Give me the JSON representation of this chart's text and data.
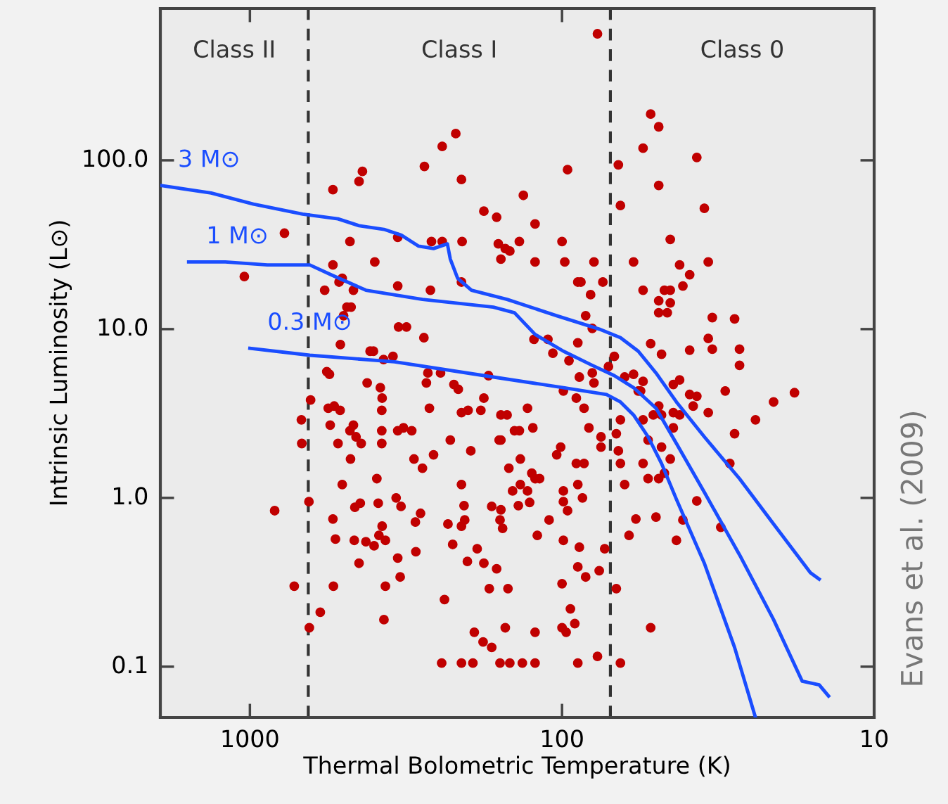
{
  "chart_data": {
    "type": "scatter",
    "xlabel": "Thermal Bolometric Temperature (K)",
    "ylabel": "Intrinsic Luminosity (L⊙)",
    "log": "xy",
    "xlim": [
      1936,
      10
    ],
    "ylim": [
      0.05,
      794
    ],
    "xticks": [
      1000,
      100,
      10
    ],
    "yticks": [
      0.1,
      {
        "value": 1,
        "label": "1.0"
      },
      {
        "value": 10,
        "label": "10.0"
      },
      {
        "value": 100,
        "label": "100.0"
      }
    ],
    "grid": false,
    "legend": false,
    "ref_lines": [
      {
        "axis": "x",
        "value": 650,
        "line_style": "dashed",
        "color": "#333333"
      },
      {
        "axis": "x",
        "value": 70,
        "line_style": "dashed",
        "color": "#333333"
      }
    ],
    "annotations": [
      "Class II",
      "Class I",
      "Class 0",
      "Evans et al. (2009)"
    ],
    "series": [
      {
        "marker": "circle",
        "color": "#c00000",
        "x": [
          77,
          52,
          49,
          55,
          37,
          49,
          35,
          66,
          65,
          96,
          133,
          178,
          162,
          122,
          210,
          219,
          242,
          276,
          436,
          447,
          542,
          478,
          398,
          336,
          262,
          242,
          209,
          160,
          137,
          152,
          122,
          147,
          100,
          98,
          87,
          79,
          74,
          89,
          81,
          84,
          80,
          89,
          111,
          123,
          107,
          95,
          99,
          88,
          80,
          79,
          90,
          85,
          82,
          75,
          75,
          85,
          89,
          86,
          99,
          99,
          96,
          110,
          99,
          88,
          73,
          76,
          84,
          89,
          100,
          94,
          91,
          100,
          97,
          67,
          89,
          77,
          65,
          122,
          134,
          147,
          158,
          193,
          210,
          243,
          122,
          152,
          168,
          179,
          191,
          171,
          149,
          162,
          178,
          201,
          224,
          187,
          155,
          158,
          157,
          168,
          206,
          210,
          232,
          205,
          210,
          238,
          372,
          368,
          330,
          336,
          294,
          284,
          295,
          340,
          328,
          388,
          392,
          377,
          386,
          368,
          400,
          463,
          425,
          461,
          443,
          506,
          542,
          532,
          447,
          540,
          721,
          645,
          595,
          833,
          647,
          684,
          682,
          639,
          567,
          556,
          561,
          537,
          514,
          553,
          466,
          478,
          457,
          522,
          440,
          476,
          378,
          378,
          336,
          322,
          378,
          377,
          382,
          421,
          412,
          402,
          373,
          348,
          334,
          315,
          277,
          336,
          269,
          272,
          266,
          303,
          298,
          280,
          258,
          264,
          245,
          222,
          215,
          228,
          210,
          200,
          196,
          182,
          178,
          172,
          159,
          157,
          150,
          157,
          142,
          137,
          136,
          129,
          124,
          122,
          125,
          118,
          129,
          127,
          136,
          148,
          144,
          138,
          120,
          104,
          101,
          90,
          71,
          68,
          63,
          59,
          55,
          57,
          56,
          55,
          53,
          65,
          67,
          66,
          65,
          63,
          61,
          58,
          55,
          53,
          50,
          49,
          47,
          45,
          48,
          49,
          51,
          48,
          44,
          44,
          42,
          44,
          39,
          38,
          37,
          34,
          39,
          42,
          48,
          52,
          49,
          47,
          45,
          55,
          46,
          49,
          45,
          45,
          42,
          39,
          41,
          59,
          34,
          33,
          28,
          34,
          33,
          27,
          27,
          30,
          28,
          29,
          24,
          21,
          18,
          31,
          41,
          37,
          43,
          52,
          1042,
          775,
          576,
          542,
          518,
          501,
          489,
          474,
          466,
          506,
          513,
          157,
          210
        ],
        "values": [
          562,
          188,
          158,
          118,
          104,
          71,
          52,
          94,
          54,
          88,
          62,
          50,
          46,
          42,
          77,
          144,
          121,
          92,
          86,
          75,
          67,
          33,
          25,
          35,
          33,
          33,
          33,
          32,
          33,
          30,
          25,
          29,
          33,
          25,
          19,
          25,
          19,
          19,
          16,
          12,
          10.1,
          8.3,
          8.7,
          8.7,
          7.2,
          6.5,
          4.3,
          5.2,
          5.5,
          4.8,
          3.9,
          3.4,
          2.6,
          2.3,
          2.0,
          1.6,
          1.2,
          1.0,
          1.1,
          0.95,
          0.84,
          0.74,
          0.56,
          0.51,
          0.5,
          0.37,
          0.34,
          0.39,
          0.31,
          0.22,
          0.18,
          0.17,
          0.16,
          0.29,
          0.105,
          0.115,
          0.105,
          0.105,
          0.105,
          0.105,
          0.105,
          0.105,
          0.105,
          0.105,
          0.16,
          0.17,
          0.13,
          0.14,
          0.16,
          0.29,
          0.29,
          0.38,
          0.41,
          0.42,
          0.53,
          0.5,
          0.66,
          0.74,
          0.85,
          0.89,
          0.9,
          1.2,
          0.7,
          0.74,
          0.68,
          0.25,
          0.19,
          0.3,
          0.34,
          0.44,
          0.48,
          0.81,
          0.72,
          1.0,
          0.89,
          0.93,
          1.3,
          0.68,
          0.6,
          0.56,
          0.52,
          0.56,
          0.55,
          0.88,
          0.93,
          1.2,
          0.75,
          0.57,
          0.41,
          0.3,
          0.3,
          0.17,
          0.21,
          0.84,
          0.95,
          2.9,
          2.1,
          3.8,
          5.6,
          5.4,
          3.4,
          3.5,
          3.3,
          2.7,
          2.7,
          2.5,
          2.3,
          2.1,
          2.1,
          1.7,
          2.1,
          2.5,
          2.5,
          2.6,
          3.3,
          3.9,
          4.5,
          4.8,
          7.4,
          7.4,
          6.6,
          6.9,
          10.3,
          10.3,
          8.9,
          18,
          5.5,
          4.8,
          3.4,
          2.5,
          1.7,
          1.5,
          1.8,
          17,
          5.5,
          4.7,
          4.4,
          2.2,
          3.2,
          3.3,
          1.9,
          3.3,
          3.9,
          5.3,
          2.2,
          3.1,
          3.1,
          2.2,
          2.5,
          2.5,
          1.7,
          3.4,
          2.6,
          1.3,
          1.4,
          1.3,
          1.1,
          0.94,
          1.2,
          1.5,
          1.1,
          0.9,
          0.6,
          1.8,
          2.0,
          1.6,
          6.0,
          6.9,
          5.2,
          5.4,
          4.9,
          4.3,
          4.3,
          2.9,
          2.2,
          2.9,
          2.4,
          1.9,
          1.6,
          1.2,
          0.6,
          0.75,
          1.6,
          1.3,
          0.77,
          1.3,
          1.4,
          1.7,
          2.0,
          3.5,
          3.1,
          3.1,
          2.6,
          3.2,
          3.1,
          4.7,
          4.1,
          3.5,
          4.0,
          3.2,
          7.5,
          5.0,
          7.1,
          8.2,
          14.7,
          17,
          17,
          17,
          12.5,
          12.5,
          14.3,
          34,
          24,
          21,
          18,
          25,
          25,
          11.7,
          11.5,
          8.8,
          7.6,
          7.6,
          6.1,
          4.3,
          2.4,
          1.6,
          2.9,
          3.7,
          4.2,
          0.67,
          0.74,
          0.96,
          0.56,
          0.17,
          20.5,
          37,
          17,
          24,
          19,
          12,
          13.5,
          13.5,
          17,
          20,
          8.1,
          26,
          19
        ]
      },
      {
        "type": "line",
        "name": "3 M⊙",
        "color": "#1a4dff",
        "line_style": "solid",
        "x": [
          1936,
          1331,
          975,
          678,
          522,
          447,
          372,
          327,
          288,
          258,
          233,
          228,
          216,
          195,
          150,
          104,
          76,
          65,
          57,
          50,
          43,
          35,
          27,
          21,
          16,
          15
        ],
        "values": [
          71,
          64,
          55,
          48,
          45,
          41,
          39,
          36,
          31,
          30,
          32,
          26,
          20,
          17,
          15,
          12,
          10,
          8.9,
          7.4,
          5.5,
          3.7,
          2.3,
          1.3,
          0.7,
          0.36,
          0.33
        ]
      },
      {
        "type": "line",
        "name": "1 M⊙",
        "color": "#1a4dff",
        "line_style": "solid",
        "x": [
          1571,
          1199,
          879,
          643,
          550,
          425,
          280,
          166,
          142,
          122,
          99,
          80,
          68,
          59,
          50,
          43,
          35,
          27,
          21,
          17,
          15,
          14
        ],
        "values": [
          25,
          25,
          24,
          24,
          21,
          17,
          15,
          13.5,
          12.5,
          9.3,
          7.4,
          6.1,
          5.3,
          4.5,
          3.4,
          2.1,
          1.08,
          0.46,
          0.19,
          0.082,
          0.078,
          0.067
        ]
      },
      {
        "type": "line",
        "name": "0.3 M⊙",
        "color": "#1a4dff",
        "line_style": "solid",
        "x": [
          1000,
          643,
          344,
          166,
          99,
          72,
          65,
          59,
          53,
          48,
          43,
          35,
          28,
          24
        ],
        "values": [
          7.7,
          7.0,
          6.4,
          5.2,
          4.5,
          4.1,
          3.7,
          3.1,
          2.3,
          1.6,
          0.98,
          0.41,
          0.13,
          0.05
        ]
      }
    ]
  }
}
